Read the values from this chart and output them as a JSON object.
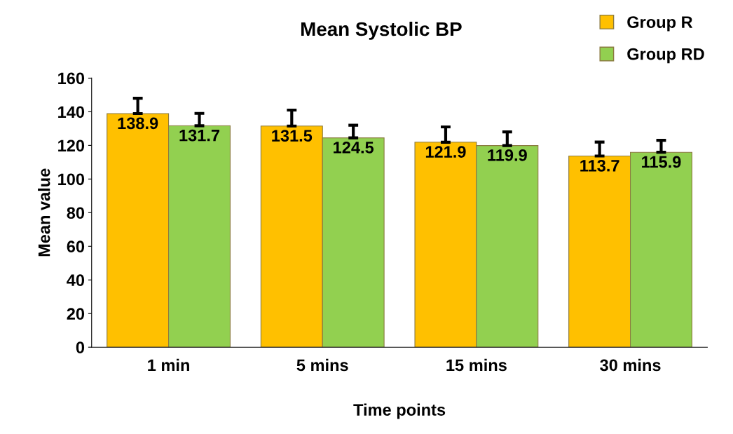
{
  "chart_data": {
    "type": "bar",
    "title": "Mean Systolic BP",
    "xlabel": "Time points",
    "ylabel": "Mean value",
    "categories": [
      "1 min",
      "5 mins",
      "15 mins",
      "30 mins"
    ],
    "series": [
      {
        "name": "Group R",
        "color": "#ffc000",
        "values": [
          138.9,
          131.5,
          121.9,
          113.7
        ],
        "errors": [
          [
            138.9,
            148
          ],
          [
            131.5,
            141
          ],
          [
            121.9,
            131
          ],
          [
            113.7,
            122
          ]
        ]
      },
      {
        "name": "Group RD",
        "color": "#92d050",
        "values": [
          131.7,
          124.5,
          119.9,
          115.9
        ],
        "errors": [
          [
            131.7,
            139
          ],
          [
            124.5,
            132
          ],
          [
            119.9,
            128
          ],
          [
            115.9,
            123
          ]
        ]
      }
    ],
    "ylim": [
      0,
      160
    ],
    "yticks": [
      0,
      20,
      40,
      60,
      80,
      100,
      120,
      140,
      160
    ],
    "grid": false,
    "legend": "top right",
    "data_labels": true
  }
}
